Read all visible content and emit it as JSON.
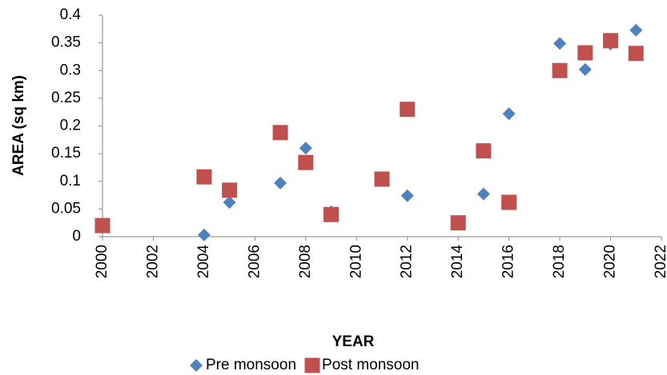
{
  "chart_data": {
    "type": "scatter",
    "x_label": "YEAR",
    "y_label": "AREA (sq km)",
    "xlim": [
      2000,
      2022
    ],
    "xticks": [
      2000,
      2002,
      2004,
      2006,
      2008,
      2010,
      2012,
      2014,
      2016,
      2018,
      2020,
      2022
    ],
    "ylim": [
      0,
      0.4
    ],
    "yticks": [
      0,
      0.05,
      0.1,
      0.15,
      0.2,
      0.25,
      0.3,
      0.35,
      0.4
    ],
    "grid": false,
    "legend": "bottom",
    "series": [
      {
        "name": "Pre monsoon",
        "color": "#4f81bd",
        "marker": "diamond",
        "x": [
          2004,
          2005,
          2007,
          2008,
          2009,
          2012,
          2015,
          2016,
          2018,
          2019,
          2020,
          2021
        ],
        "values": [
          0.003,
          0.062,
          0.097,
          0.16,
          0.045,
          0.074,
          0.077,
          0.222,
          0.349,
          0.302,
          0.348,
          0.373
        ]
      },
      {
        "name": "Post monsoon",
        "color": "#c0504d",
        "marker": "square",
        "x": [
          2000,
          2004,
          2005,
          2007,
          2008,
          2009,
          2011,
          2012,
          2014,
          2015,
          2016,
          2018,
          2019,
          2020,
          2021
        ],
        "values": [
          0.02,
          0.108,
          0.084,
          0.188,
          0.134,
          0.04,
          0.104,
          0.23,
          0.025,
          0.155,
          0.062,
          0.3,
          0.332,
          0.354,
          0.331
        ]
      }
    ]
  }
}
